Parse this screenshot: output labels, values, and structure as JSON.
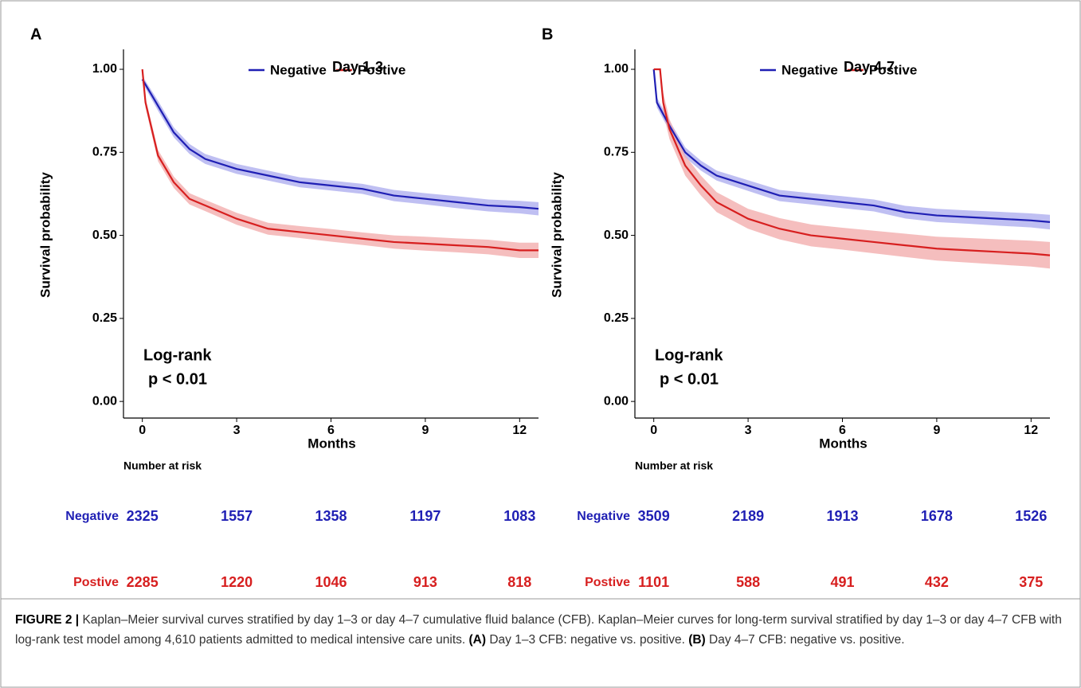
{
  "chart_data": [
    {
      "type": "line",
      "panel": "A",
      "title": "Day 1-3",
      "xlabel": "Months",
      "ylabel": "Survival probability",
      "xlim": [
        -0.6,
        12.6
      ],
      "ylim": [
        -0.05,
        1.06
      ],
      "xticks": [
        0,
        3,
        6,
        9,
        12
      ],
      "yticks": [
        {
          "value": 0,
          "label": "0.00"
        },
        {
          "value": 0.25,
          "label": "0.25"
        },
        {
          "value": 0.5,
          "label": "0.50"
        },
        {
          "value": 0.75,
          "label": "0.75"
        },
        {
          "value": 1,
          "label": "1.00"
        }
      ],
      "annotations": [
        "Log-rank",
        "p < 0.01"
      ],
      "series": [
        {
          "name": "Negative",
          "color": "#1f1fb4",
          "band_color": "#a9a9ee",
          "x": [
            0,
            0.5,
            1,
            1.5,
            2,
            3,
            4,
            5,
            6,
            7,
            8,
            9,
            10,
            11,
            12,
            12.6
          ],
          "values": [
            0.97,
            0.89,
            0.81,
            0.76,
            0.73,
            0.7,
            0.68,
            0.66,
            0.65,
            0.64,
            0.62,
            0.61,
            0.6,
            0.59,
            0.585,
            0.58
          ],
          "upper": [
            0.98,
            0.905,
            0.825,
            0.775,
            0.745,
            0.715,
            0.695,
            0.675,
            0.665,
            0.655,
            0.637,
            0.627,
            0.618,
            0.608,
            0.604,
            0.6
          ],
          "lower": [
            0.96,
            0.875,
            0.795,
            0.745,
            0.715,
            0.685,
            0.665,
            0.645,
            0.635,
            0.625,
            0.603,
            0.593,
            0.582,
            0.572,
            0.566,
            0.56
          ]
        },
        {
          "name": "Postive",
          "color": "#d71f1f",
          "band_color": "#f2a8a8",
          "x": [
            0,
            0.1,
            0.5,
            1,
            1.5,
            2,
            3,
            4,
            5,
            6,
            7,
            8,
            9,
            10,
            11,
            12,
            12.6
          ],
          "values": [
            1,
            0.9,
            0.74,
            0.66,
            0.61,
            0.59,
            0.55,
            0.52,
            0.51,
            0.5,
            0.49,
            0.48,
            0.475,
            0.47,
            0.465,
            0.455,
            0.455
          ],
          "upper": [
            1,
            0.915,
            0.757,
            0.677,
            0.627,
            0.607,
            0.568,
            0.538,
            0.528,
            0.519,
            0.509,
            0.5,
            0.496,
            0.491,
            0.487,
            0.478,
            0.478
          ],
          "lower": [
            1,
            0.885,
            0.723,
            0.643,
            0.593,
            0.573,
            0.532,
            0.502,
            0.492,
            0.481,
            0.471,
            0.46,
            0.454,
            0.449,
            0.443,
            0.432,
            0.432
          ]
        }
      ],
      "risk_table": {
        "title": "Number at risk",
        "rows": [
          {
            "name": "Negative",
            "color": "#1f1fb4",
            "values": [
              2325,
              1557,
              1358,
              1197,
              1083
            ]
          },
          {
            "name": "Postive",
            "color": "#d71f1f",
            "values": [
              2285,
              1220,
              1046,
              913,
              818
            ]
          }
        ]
      }
    },
    {
      "type": "line",
      "panel": "B",
      "title": "Day 4-7",
      "xlabel": "Months",
      "ylabel": "Survival probability",
      "xlim": [
        -0.6,
        12.6
      ],
      "ylim": [
        -0.05,
        1.06
      ],
      "xticks": [
        0,
        3,
        6,
        9,
        12
      ],
      "yticks": [
        {
          "value": 0,
          "label": "0.00"
        },
        {
          "value": 0.25,
          "label": "0.25"
        },
        {
          "value": 0.5,
          "label": "0.50"
        },
        {
          "value": 0.75,
          "label": "0.75"
        },
        {
          "value": 1,
          "label": "1.00"
        }
      ],
      "annotations": [
        "Log-rank",
        "p < 0.01"
      ],
      "series": [
        {
          "name": "Negative",
          "color": "#1f1fb4",
          "band_color": "#a9a9ee",
          "x": [
            0,
            0.1,
            0.5,
            1,
            1.5,
            2,
            3,
            4,
            5,
            6,
            7,
            8,
            9,
            10,
            11,
            12,
            12.6
          ],
          "values": [
            1,
            0.9,
            0.83,
            0.75,
            0.71,
            0.68,
            0.65,
            0.62,
            0.61,
            0.6,
            0.59,
            0.57,
            0.56,
            0.555,
            0.55,
            0.545,
            0.54
          ],
          "upper": [
            1,
            0.915,
            0.845,
            0.765,
            0.725,
            0.695,
            0.666,
            0.637,
            0.627,
            0.618,
            0.608,
            0.589,
            0.58,
            0.575,
            0.571,
            0.566,
            0.562
          ],
          "lower": [
            1,
            0.885,
            0.815,
            0.735,
            0.695,
            0.665,
            0.634,
            0.603,
            0.593,
            0.582,
            0.572,
            0.551,
            0.54,
            0.535,
            0.529,
            0.524,
            0.518
          ]
        },
        {
          "name": "Postive",
          "color": "#d71f1f",
          "band_color": "#f2a8a8",
          "x": [
            0,
            0.2,
            0.3,
            0.5,
            1,
            1.5,
            2,
            3,
            4,
            5,
            6,
            7,
            8,
            9,
            10,
            11,
            12,
            12.6
          ],
          "values": [
            1,
            1,
            0.9,
            0.82,
            0.71,
            0.65,
            0.6,
            0.55,
            0.52,
            0.5,
            0.49,
            0.48,
            0.47,
            0.46,
            0.455,
            0.45,
            0.445,
            0.44
          ],
          "upper": [
            1,
            1,
            0.93,
            0.85,
            0.74,
            0.68,
            0.63,
            0.58,
            0.552,
            0.533,
            0.523,
            0.514,
            0.505,
            0.496,
            0.492,
            0.488,
            0.484,
            0.48
          ],
          "lower": [
            1,
            1,
            0.87,
            0.79,
            0.68,
            0.62,
            0.57,
            0.52,
            0.488,
            0.467,
            0.457,
            0.446,
            0.435,
            0.424,
            0.418,
            0.412,
            0.406,
            0.4
          ]
        }
      ],
      "risk_table": {
        "title": "Number at risk",
        "rows": [
          {
            "name": "Negative",
            "color": "#1f1fb4",
            "values": [
              3509,
              2189,
              1913,
              1678,
              1526
            ]
          },
          {
            "name": "Postive",
            "color": "#d71f1f",
            "values": [
              1101,
              588,
              491,
              432,
              375
            ]
          }
        ]
      }
    }
  ],
  "caption": [
    {
      "text": "FIGURE 2 |",
      "bold": true
    },
    {
      "text": " Kaplan–Meier survival curves stratified by day 1–3 or day 4–7 cumulative fluid balance (CFB). Kaplan–Meier curves for long-term survival stratified by day 1–3 or day 4–7 CFB with log-rank test model among 4,610 patients admitted to medical intensive care units. ",
      "bold": false
    },
    {
      "text": "(A)",
      "bold": true
    },
    {
      "text": " Day 1–3 CFB: negative vs. positive. ",
      "bold": false
    },
    {
      "text": "(B)",
      "bold": true
    },
    {
      "text": " Day 4–7 CFB: negative vs. positive.",
      "bold": false
    }
  ]
}
